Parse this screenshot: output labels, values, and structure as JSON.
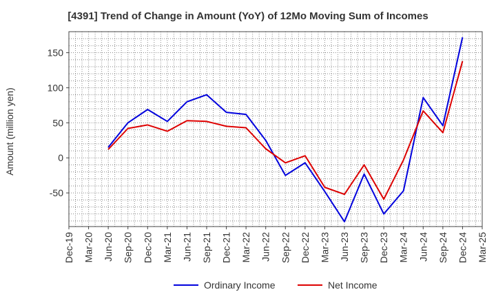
{
  "chart_data": {
    "type": "line",
    "title": "[4391]  Trend of Change in Amount (YoY) of 12Mo Moving Sum of Incomes",
    "xlabel": "",
    "ylabel": "Amount (million yen)",
    "categories": [
      "Dec-19",
      "Mar-20",
      "Jun-20",
      "Sep-20",
      "Dec-20",
      "Mar-21",
      "Jun-21",
      "Sep-21",
      "Dec-21",
      "Mar-22",
      "Jun-22",
      "Sep-22",
      "Dec-22",
      "Mar-23",
      "Jun-23",
      "Sep-23",
      "Dec-23",
      "Mar-24",
      "Jun-24",
      "Sep-24",
      "Dec-24",
      "Mar-25"
    ],
    "ylim": [
      -98,
      180
    ],
    "yticks": [
      -50,
      0,
      50,
      100,
      150
    ],
    "grid": true,
    "legend_position": "bottom",
    "series": [
      {
        "name": "Ordinary Income",
        "color": "#0000dd",
        "values": [
          null,
          null,
          15,
          50,
          69,
          52,
          80,
          90,
          65,
          62,
          25,
          -25,
          -7,
          -48,
          -91,
          -23,
          -80,
          -47,
          86,
          46,
          172,
          null
        ]
      },
      {
        "name": "Net Income",
        "color": "#dd0000",
        "values": [
          null,
          null,
          12,
          42,
          47,
          38,
          53,
          52,
          45,
          43,
          13,
          -7,
          3,
          -42,
          -52,
          -10,
          -59,
          -3,
          67,
          36,
          138,
          null
        ]
      }
    ]
  }
}
